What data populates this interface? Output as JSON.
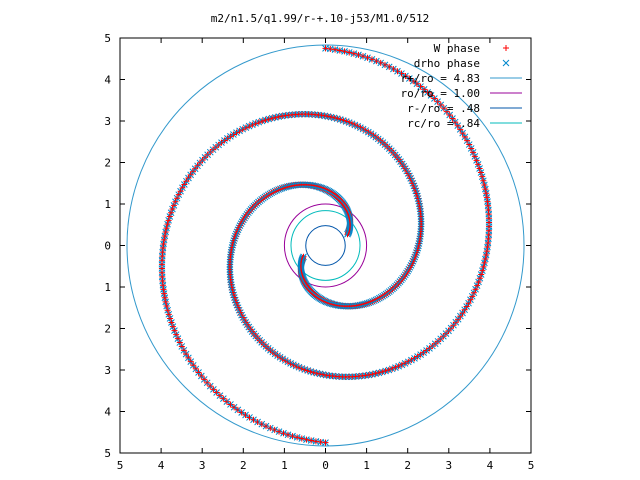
{
  "chart_data": {
    "type": "scatter",
    "title": "m2/n1.5/q1.99/r-+.10-j53/M1.0/512",
    "xlabel": "",
    "ylabel": "",
    "xlim": [
      -5,
      5
    ],
    "ylim": [
      -5,
      5
    ],
    "x_tick_labels": [
      "5",
      "4",
      "3",
      "2",
      "1",
      "0",
      "1",
      "2",
      "3",
      "4",
      "5"
    ],
    "y_tick_labels": [
      "5",
      "4",
      "3",
      "2",
      "1",
      "0",
      "1",
      "2",
      "3",
      "4",
      "5"
    ],
    "grid": false,
    "legend_position": "top-right",
    "series": [
      {
        "name": "W phase",
        "marker": "+",
        "color": "#ff0000",
        "description": "two-armed spiral, phase minima",
        "arms": 2,
        "r_inner": 0.6,
        "r_outer": 4.75
      },
      {
        "name": "drho phase",
        "marker": "x",
        "color": "#0088cc",
        "description": "two-armed spiral, phase minima",
        "arms": 2,
        "r_inner": 0.6,
        "r_outer": 4.75
      },
      {
        "name": "r+/ro = 4.83",
        "type": "circle",
        "radius": 4.83,
        "color": "#3399cc"
      },
      {
        "name": "ro/ro = 1.00",
        "type": "circle",
        "radius": 1.0,
        "color": "#990099"
      },
      {
        "name": "r-/ro = .48",
        "type": "circle",
        "radius": 0.48,
        "color": "#0055aa"
      },
      {
        "name": "rc/ro = .84",
        "type": "circle",
        "radius": 0.84,
        "color": "#00bbbb"
      }
    ]
  }
}
